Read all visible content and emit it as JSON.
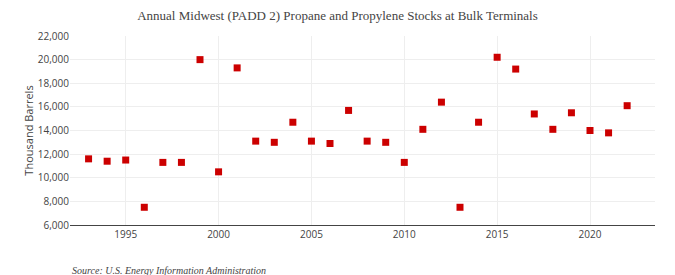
{
  "chart_data": {
    "type": "scatter",
    "title": "Annual Midwest (PADD 2) Propane and Propylene Stocks at Bulk Terminals",
    "ylabel": "Thousand Barrels",
    "annotations": [
      "Source: U.S. Energy Information Administration"
    ],
    "x": [
      1993,
      1994,
      1995,
      1996,
      1997,
      1998,
      1999,
      2000,
      2001,
      2002,
      2003,
      2004,
      2005,
      2006,
      2007,
      2008,
      2009,
      2010,
      2011,
      2012,
      2013,
      2014,
      2015,
      2016,
      2017,
      2018,
      2019,
      2020,
      2021,
      2022
    ],
    "values": [
      11600,
      11400,
      11500,
      7500,
      11300,
      11300,
      20000,
      10500,
      19300,
      13100,
      13000,
      14700,
      13100,
      12900,
      15700,
      13100,
      13000,
      11300,
      14100,
      16400,
      7500,
      14700,
      20200,
      19200,
      15400,
      14100,
      15500,
      14000,
      13800,
      16100
    ],
    "color": "#cc0000",
    "marker": "square",
    "xlim": [
      1992,
      2023.5
    ],
    "xticks": [
      1995,
      2000,
      2005,
      2010,
      2015,
      2020
    ],
    "ylim": [
      6000,
      22000
    ],
    "yticks": [
      {
        "value": 6000,
        "label": "6,000"
      },
      {
        "value": 8000,
        "label": "8,000"
      },
      {
        "value": 10000,
        "label": "10,000"
      },
      {
        "value": 12000,
        "label": "12,000"
      },
      {
        "value": 14000,
        "label": "14,000"
      },
      {
        "value": 16000,
        "label": "16,000"
      },
      {
        "value": 18000,
        "label": "18,000"
      },
      {
        "value": 20000,
        "label": "20,000"
      },
      {
        "value": 22000,
        "label": "22,000"
      }
    ],
    "grid": true
  }
}
